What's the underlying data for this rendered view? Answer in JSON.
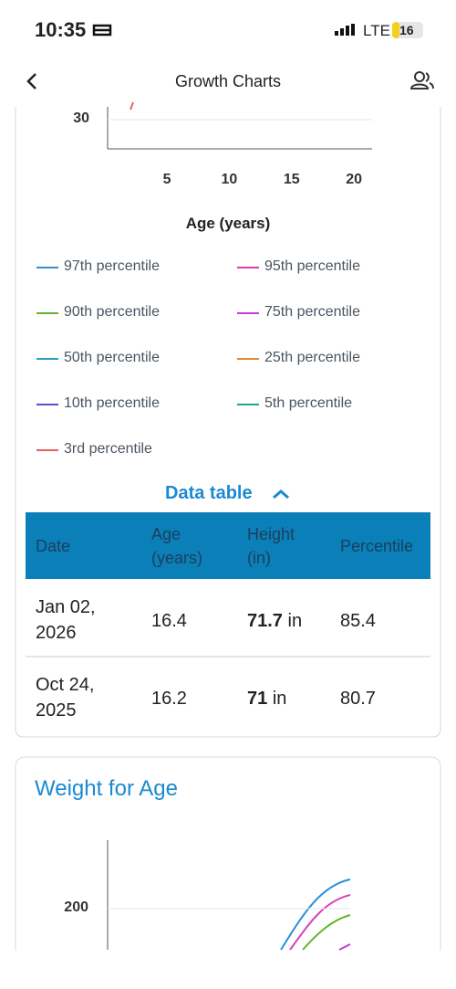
{
  "status_bar": {
    "time": "10:35",
    "network": "LTE",
    "battery": "16"
  },
  "header": {
    "title": "Growth Charts"
  },
  "height_chart": {
    "yticks": [
      30
    ],
    "xticks": [
      5,
      10,
      15,
      20
    ],
    "x_label": "Age (years)",
    "legend": [
      {
        "name": "97th percentile",
        "color": "#2d8fd8"
      },
      {
        "name": "95th percentile",
        "color": "#d83fb4"
      },
      {
        "name": "90th percentile",
        "color": "#5fb52c"
      },
      {
        "name": "75th percentile",
        "color": "#c23fd6"
      },
      {
        "name": "50th percentile",
        "color": "#2aa0c8"
      },
      {
        "name": "25th percentile",
        "color": "#e08a2a"
      },
      {
        "name": "10th percentile",
        "color": "#5a4fd1"
      },
      {
        "name": "5th percentile",
        "color": "#22a58a"
      },
      {
        "name": "3rd percentile",
        "color": "#e86060"
      }
    ]
  },
  "data_table": {
    "toggle": "Data table",
    "columns": [
      "Date",
      "Age (years)",
      "Height (in)",
      "Percentile"
    ],
    "rows": [
      {
        "date": "Jan 02, 2026",
        "age": 16.4,
        "height": 71.7,
        "unit": "in",
        "percentile": 85.4
      },
      {
        "date": "Oct 24, 2025",
        "age": 16.2,
        "height": 71,
        "unit": "in",
        "percentile": 80.7
      }
    ]
  },
  "weight_chart": {
    "title": "Weight for Age",
    "yticks": [
      200
    ]
  }
}
